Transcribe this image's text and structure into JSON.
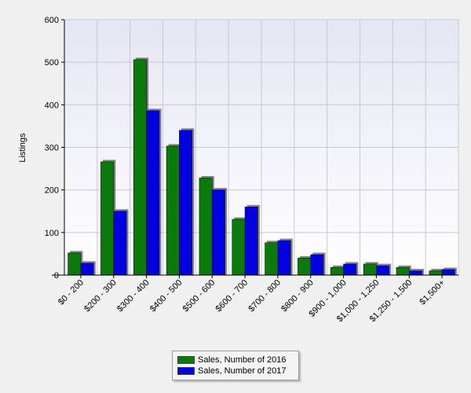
{
  "chart_data": {
    "type": "bar",
    "ylabel": "Listings",
    "xlabel": "",
    "ylim": [
      0,
      600
    ],
    "yticks": [
      0,
      100,
      200,
      300,
      400,
      500,
      600
    ],
    "grid": true,
    "legend_position": "bottom",
    "categories": [
      "$0 - 200",
      "$200 - 300",
      "$300 - 400",
      "$400 - 500",
      "$500 - 600",
      "$600 - 700",
      "$700 - 800",
      "$800 - 900",
      "$900 - 1,000",
      "$1,000 - 1,250",
      "$1,250 - 1,500",
      "$1,500+"
    ],
    "series": [
      {
        "name": "Sales, Number of 2016",
        "color": "#0a7a0a",
        "values": [
          52,
          266,
          506,
          303,
          228,
          131,
          76,
          40,
          18,
          26,
          18,
          10
        ]
      },
      {
        "name": "Sales, Number of 2017",
        "color": "#0000e0",
        "values": [
          28,
          150,
          386,
          340,
          200,
          160,
          81,
          48,
          26,
          22,
          10,
          13
        ]
      }
    ]
  }
}
